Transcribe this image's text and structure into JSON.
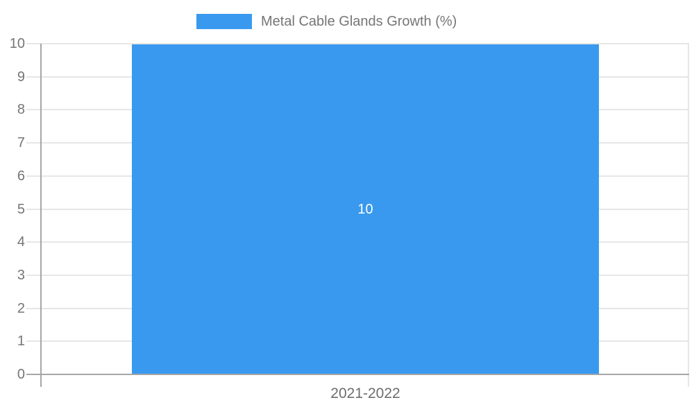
{
  "legend": {
    "label": "Metal Cable Glands Growth (%)"
  },
  "x_axis": {
    "category": "2021-2022"
  },
  "chart_data": {
    "type": "bar",
    "title": "Metal Cable Glands Growth (%)",
    "categories": [
      "2021-2022"
    ],
    "series": [
      {
        "name": "Metal Cable Glands Growth (%)",
        "values": [
          10
        ]
      }
    ],
    "bar_value_labels": [
      "10"
    ],
    "xlabel": "",
    "ylabel": "",
    "ylim": [
      0,
      10
    ],
    "yticks": [
      0,
      1,
      2,
      3,
      4,
      5,
      6,
      7,
      8,
      9,
      10
    ],
    "grid": true,
    "legend_position": "top-center",
    "colors": {
      "bar": "#3999EE",
      "axis_line": "#a6a6a6",
      "grid_line": "#e6e6e6",
      "tick_label": "#757575",
      "category_label": "#6d6d6d",
      "bar_value_label": "#ffffff",
      "legend_label": "#757575"
    }
  }
}
